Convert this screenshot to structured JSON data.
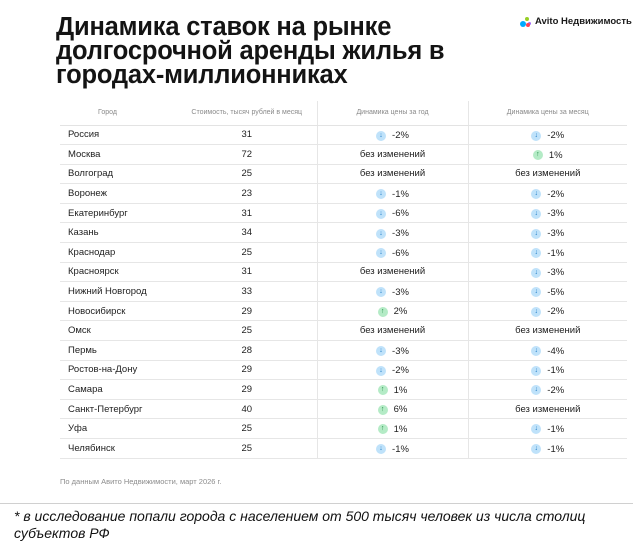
{
  "header": {
    "title": "Динамика ставок на рынке долгосрочной аренды жилья в городах-миллионниках",
    "brand": "Avito Недвижимость"
  },
  "table": {
    "columns": [
      "Город",
      "Стоимость, тысяч рублей в месяц",
      "Динамика цены за год",
      "Динамика цены за месяц"
    ],
    "rows": [
      {
        "city": "Россия",
        "cost": "31",
        "year": "-2%",
        "year_dir": "down",
        "month": "-2%",
        "month_dir": "down"
      },
      {
        "city": "Москва",
        "cost": "72",
        "year": "без изменений",
        "year_dir": "none",
        "month": "1%",
        "month_dir": "up"
      },
      {
        "city": "Волгоград",
        "cost": "25",
        "year": "без изменений",
        "year_dir": "none",
        "month": "без изменений",
        "month_dir": "none"
      },
      {
        "city": "Воронеж",
        "cost": "23",
        "year": "-1%",
        "year_dir": "down",
        "month": "-2%",
        "month_dir": "down"
      },
      {
        "city": "Екатеринбург",
        "cost": "31",
        "year": "-6%",
        "year_dir": "down",
        "month": "-3%",
        "month_dir": "down"
      },
      {
        "city": "Казань",
        "cost": "34",
        "year": "-3%",
        "year_dir": "down",
        "month": "-3%",
        "month_dir": "down"
      },
      {
        "city": "Краснодар",
        "cost": "25",
        "year": "-6%",
        "year_dir": "down",
        "month": "-1%",
        "month_dir": "down"
      },
      {
        "city": "Красноярск",
        "cost": "31",
        "year": "без изменений",
        "year_dir": "none",
        "month": "-3%",
        "month_dir": "down"
      },
      {
        "city": "Нижний Новгород",
        "cost": "33",
        "year": "-3%",
        "year_dir": "down",
        "month": "-5%",
        "month_dir": "down"
      },
      {
        "city": "Новосибирск",
        "cost": "29",
        "year": "2%",
        "year_dir": "up",
        "month": "-2%",
        "month_dir": "down"
      },
      {
        "city": "Омск",
        "cost": "25",
        "year": "без изменений",
        "year_dir": "none",
        "month": "без изменений",
        "month_dir": "none"
      },
      {
        "city": "Пермь",
        "cost": "28",
        "year": "-3%",
        "year_dir": "down",
        "month": "-4%",
        "month_dir": "down"
      },
      {
        "city": "Ростов-на-Дону",
        "cost": "29",
        "year": "-2%",
        "year_dir": "down",
        "month": "-1%",
        "month_dir": "down"
      },
      {
        "city": "Самара",
        "cost": "29",
        "year": "1%",
        "year_dir": "up",
        "month": "-2%",
        "month_dir": "down"
      },
      {
        "city": "Санкт-Петербург",
        "cost": "40",
        "year": "6%",
        "year_dir": "up",
        "month": "без изменений",
        "month_dir": "none"
      },
      {
        "city": "Уфа",
        "cost": "25",
        "year": "1%",
        "year_dir": "up",
        "month": "-1%",
        "month_dir": "down"
      },
      {
        "city": "Челябинск",
        "cost": "25",
        "year": "-1%",
        "year_dir": "down",
        "month": "-1%",
        "month_dir": "down"
      }
    ]
  },
  "source": "По данным Авито Недвижимости, март 2026 г.",
  "footnote": "* в исследование попали города с населением от 500 тысяч человек из числа столиц субъектов РФ",
  "colors": {
    "down_icon_bg": "#bfe2fa",
    "up_icon_bg": "#b4ebc6",
    "divider": "#e6e6e6"
  }
}
